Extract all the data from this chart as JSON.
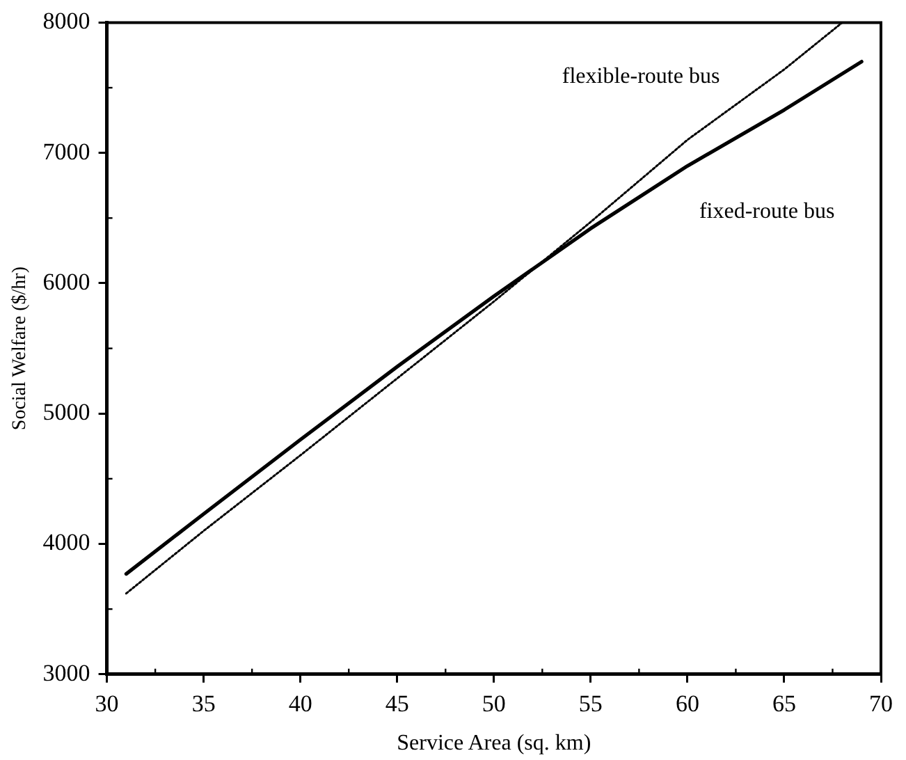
{
  "chart_data": {
    "type": "line",
    "xlabel": "Service Area (sq. km)",
    "ylabel": "Social Welfare ($/hr)",
    "xlim": [
      30,
      70
    ],
    "xticks": [
      30,
      35,
      40,
      45,
      50,
      55,
      60,
      65,
      70
    ],
    "ylim": [
      3000,
      8000
    ],
    "yticks": [
      3000,
      4000,
      5000,
      6000,
      7000,
      8000
    ],
    "grid": false,
    "legend": false,
    "marker": "none",
    "series": [
      {
        "name": "fixed-route bus",
        "color": "#000000",
        "line_style": "solid",
        "x": [
          31,
          35,
          40,
          45,
          50,
          55,
          60,
          65,
          69
        ],
        "values": [
          3770,
          4230,
          4800,
          5360,
          5900,
          6420,
          6900,
          7330,
          7700
        ]
      },
      {
        "name": "flexible-route bus",
        "color": "#000000",
        "line_style": "dotted",
        "x": [
          31,
          35,
          40,
          45,
          50,
          55,
          60,
          65,
          68
        ],
        "values": [
          3620,
          4100,
          4680,
          5270,
          5860,
          6470,
          7100,
          7640,
          8000
        ]
      }
    ]
  }
}
